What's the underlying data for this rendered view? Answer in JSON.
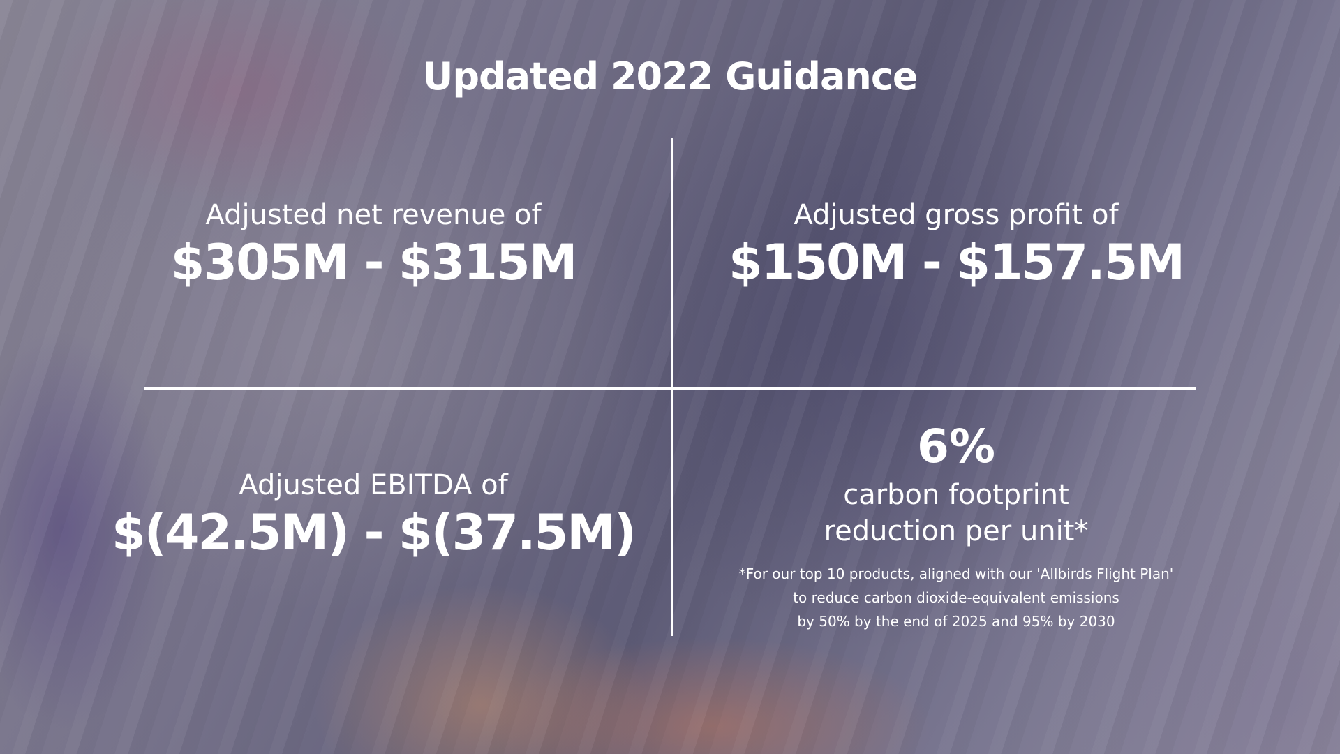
{
  "slide": {
    "title": "Updated 2022 Guidance"
  },
  "net_revenue": {
    "label": "Adjusted net revenue of",
    "value": "$305M - $315M"
  },
  "gross_profit": {
    "label": "Adjusted gross profit of",
    "value": "$150M - $157.5M"
  },
  "ebitda": {
    "label": "Adjusted EBITDA of",
    "value": "$(42.5M) - $(37.5M)"
  },
  "carbon": {
    "value": "6%",
    "line1": "carbon footprint",
    "line2": "reduction per unit*",
    "footnote": [
      "*For our top 10 products, aligned with our 'Allbirds Flight Plan'",
      "to reduce carbon dioxide-equivalent emissions",
      "by 50% by the end of  2025 and 95% by 2030"
    ]
  }
}
